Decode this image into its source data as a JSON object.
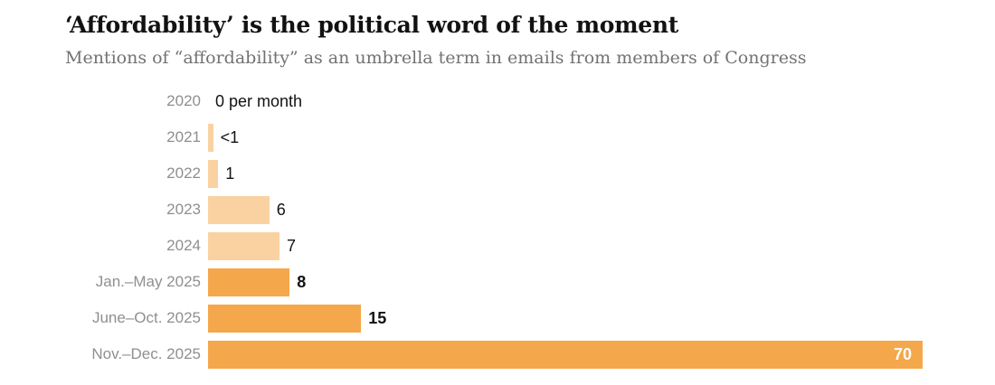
{
  "chart_data": {
    "type": "bar",
    "orientation": "horizontal",
    "title": "‘Affordability’ is the political word of the moment",
    "subtitle": "Mentions of “affordability” as an umbrella term in emails from members of Congress",
    "xlabel": "",
    "ylabel": "",
    "xlim": [
      0,
      70
    ],
    "grid": false,
    "legend": false,
    "categories": [
      "2020",
      "2021",
      "2022",
      "2023",
      "2024",
      "Jan.–May 2025",
      "June–Oct. 2025",
      "Nov.–Dec. 2025"
    ],
    "values": [
      0,
      0.5,
      1,
      6,
      7,
      8,
      15,
      70
    ],
    "rows": [
      {
        "label": "2020",
        "value": 0,
        "value_label": "0 per month",
        "color": "none",
        "value_style": "regular",
        "label_position": "outside"
      },
      {
        "label": "2021",
        "value": 0.5,
        "value_label": "<1",
        "color": "light",
        "value_style": "regular",
        "label_position": "outside"
      },
      {
        "label": "2022",
        "value": 1,
        "value_label": "1",
        "color": "light",
        "value_style": "regular",
        "label_position": "outside"
      },
      {
        "label": "2023",
        "value": 6,
        "value_label": "6",
        "color": "light",
        "value_style": "regular",
        "label_position": "outside"
      },
      {
        "label": "2024",
        "value": 7,
        "value_label": "7",
        "color": "light",
        "value_style": "regular",
        "label_position": "outside"
      },
      {
        "label": "Jan.–May 2025",
        "value": 8,
        "value_label": "8",
        "color": "dark",
        "value_style": "bold",
        "label_position": "outside"
      },
      {
        "label": "June–Oct. 2025",
        "value": 15,
        "value_label": "15",
        "color": "dark",
        "value_style": "bold",
        "label_position": "outside"
      },
      {
        "label": "Nov.–Dec. 2025",
        "value": 70,
        "value_label": "70",
        "color": "dark",
        "value_style": "bold",
        "label_position": "inside"
      }
    ],
    "colors": {
      "light": "#fad2a2",
      "dark": "#f5a74b",
      "category_text": "#8f8f8f",
      "value_text": "#121212",
      "inside_value_text": "#ffffff",
      "title_text": "#121212",
      "subtitle_text": "#727272"
    }
  }
}
